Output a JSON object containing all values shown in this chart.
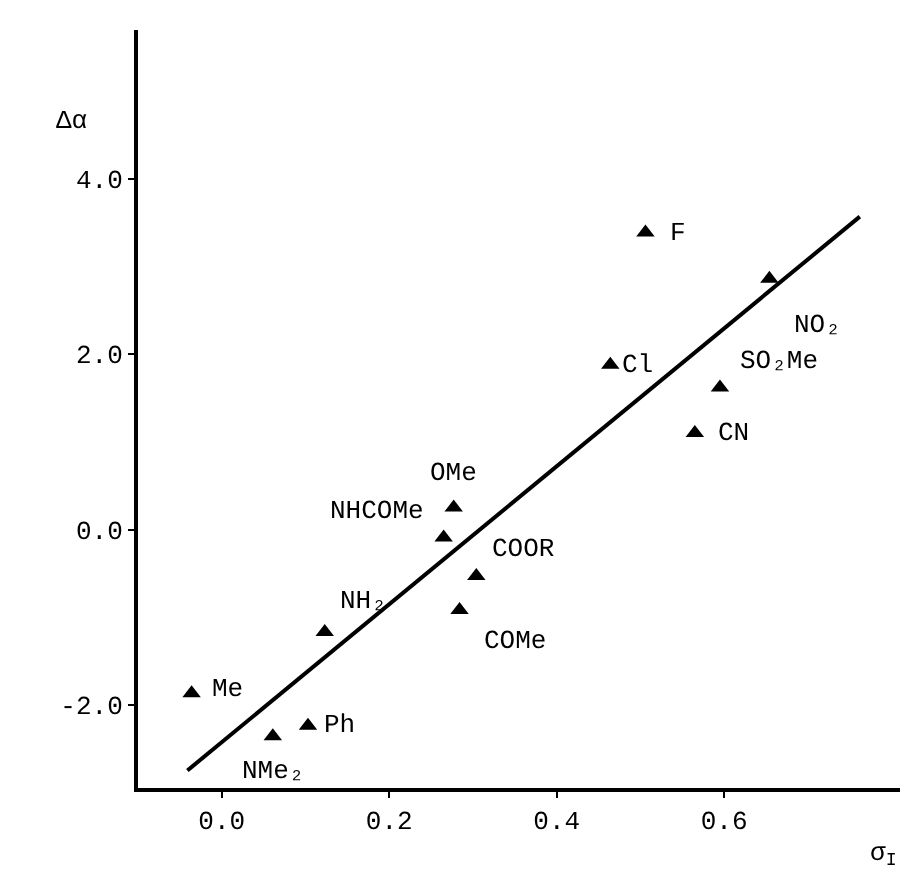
{
  "chart_data": {
    "type": "scatter",
    "xlabel": "σ$_{I}$",
    "ylabel": "Δα",
    "xlim": [
      -0.1,
      0.81
    ],
    "ylim": [
      -2.95,
      5.7
    ],
    "xticks": [
      {
        "value": 0,
        "label": "0.0"
      },
      {
        "value": 0.2,
        "label": "0.2"
      },
      {
        "value": 0.4,
        "label": "0.4"
      },
      {
        "value": 0.6,
        "label": "0.6"
      }
    ],
    "yticks": [
      {
        "value": -2,
        "label": "-2.0"
      },
      {
        "value": 0,
        "label": "0.0"
      },
      {
        "value": 2,
        "label": "2.0"
      },
      {
        "value": 4,
        "label": "4.0"
      }
    ],
    "series": [
      {
        "marker": "triangle",
        "color": "#000000",
        "x": [
          0.506,
          0.654,
          0.464,
          0.595,
          0.565,
          0.277,
          0.265,
          0.304,
          0.284,
          0.123,
          -0.036,
          0.103,
          0.061
        ],
        "values": [
          3.39,
          2.86,
          1.88,
          1.62,
          1.1,
          0.25,
          -0.09,
          -0.53,
          -0.92,
          -1.17,
          -1.87,
          -2.24,
          -2.36
        ]
      },
      {
        "type": "line",
        "marker": "none",
        "color": "#000000",
        "x": [
          -0.041,
          0.762
        ],
        "values": [
          -2.75,
          3.57
        ]
      }
    ],
    "annotations": [
      {
        "text": "F",
        "x": 0.506,
        "y": 3.39
      },
      {
        "text": "NO₂",
        "x": 0.654,
        "y": 2.86
      },
      {
        "text": "Cl",
        "x": 0.464,
        "y": 1.88
      },
      {
        "text": "SO₂Me",
        "x": 0.595,
        "y": 1.62
      },
      {
        "text": "CN",
        "x": 0.565,
        "y": 1.1
      },
      {
        "text": "OMe",
        "x": 0.277,
        "y": 0.25
      },
      {
        "text": "NHCOMe",
        "x": 0.265,
        "y": -0.09
      },
      {
        "text": "COOR",
        "x": 0.304,
        "y": -0.53
      },
      {
        "text": "COMe",
        "x": 0.284,
        "y": -0.92
      },
      {
        "text": "NH₂",
        "x": 0.123,
        "y": -1.17
      },
      {
        "text": "Me",
        "x": -0.036,
        "y": -1.87
      },
      {
        "text": "Ph",
        "x": 0.103,
        "y": -2.24
      },
      {
        "text": "NMe₂",
        "x": 0.061,
        "y": -2.36
      }
    ]
  }
}
